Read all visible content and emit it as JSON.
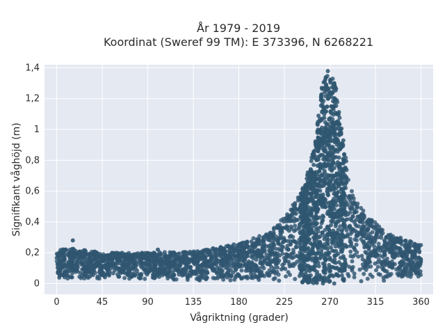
{
  "chart_data": {
    "type": "scatter",
    "title_lines": [
      "År 1979 - 2019",
      "Koordinat (Sweref 99 TM): E 373396, N 6268221"
    ],
    "xlabel": "Vågriktning (grader)",
    "ylabel": "Signifikant våghöjd (m)",
    "xlim": [
      -12,
      372
    ],
    "ylim": [
      -0.07,
      1.42
    ],
    "xticks": [
      0,
      45,
      90,
      135,
      180,
      225,
      270,
      315,
      360
    ],
    "xtick_labels": [
      "0",
      "45",
      "90",
      "135",
      "180",
      "225",
      "270",
      "315",
      "360"
    ],
    "yticks": [
      0,
      0.2,
      0.4,
      0.6,
      0.8,
      1.0,
      1.2,
      1.4
    ],
    "ytick_labels": [
      "0",
      "0,2",
      "0,4",
      "0,6",
      "0,8",
      "1",
      "1,2",
      "1,4"
    ],
    "grid": true,
    "colors": {
      "background": "#e5e9f2",
      "grid": "#ffffff",
      "marker": "#2f5670"
    },
    "envelope": [
      {
        "x": 0,
        "y_min": 0.03,
        "y_max": 0.22
      },
      {
        "x": 15,
        "y_min": 0.03,
        "y_max": 0.23
      },
      {
        "x": 45,
        "y_min": 0.03,
        "y_max": 0.2
      },
      {
        "x": 90,
        "y_min": 0.03,
        "y_max": 0.2
      },
      {
        "x": 135,
        "y_min": 0.02,
        "y_max": 0.21
      },
      {
        "x": 180,
        "y_min": 0.02,
        "y_max": 0.26
      },
      {
        "x": 210,
        "y_min": 0.01,
        "y_max": 0.33
      },
      {
        "x": 230,
        "y_min": 0.01,
        "y_max": 0.47
      },
      {
        "x": 245,
        "y_min": 0.0,
        "y_max": 0.64
      },
      {
        "x": 255,
        "y_min": 0.0,
        "y_max": 0.9
      },
      {
        "x": 262,
        "y_min": 0.0,
        "y_max": 1.28
      },
      {
        "x": 268,
        "y_min": 0.0,
        "y_max": 1.38
      },
      {
        "x": 275,
        "y_min": 0.0,
        "y_max": 1.32
      },
      {
        "x": 282,
        "y_min": 0.01,
        "y_max": 1.0
      },
      {
        "x": 290,
        "y_min": 0.01,
        "y_max": 0.62
      },
      {
        "x": 305,
        "y_min": 0.01,
        "y_max": 0.45
      },
      {
        "x": 330,
        "y_min": 0.02,
        "y_max": 0.32
      },
      {
        "x": 360,
        "y_min": 0.03,
        "y_max": 0.25
      }
    ],
    "outliers": [
      {
        "x": 16,
        "y": 0.28
      },
      {
        "x": 100,
        "y": 0.22
      },
      {
        "x": 330,
        "y": 0.29
      }
    ]
  }
}
